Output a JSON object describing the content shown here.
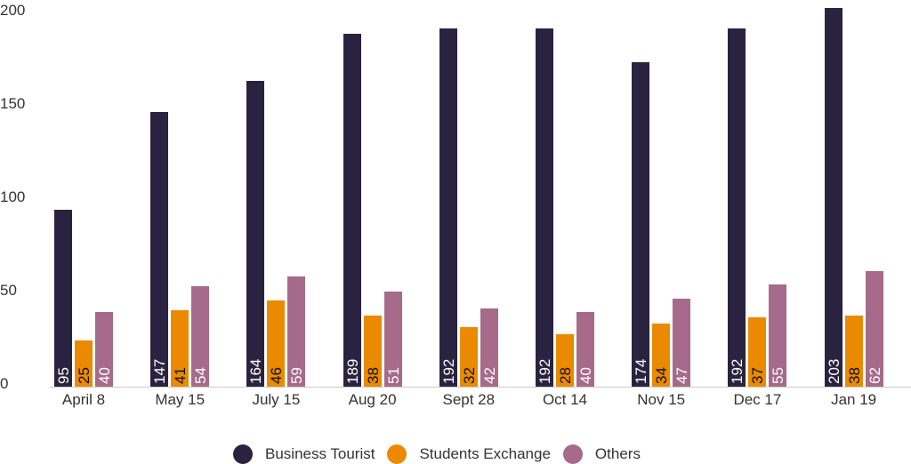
{
  "chart_data": {
    "type": "bar",
    "title": "",
    "xlabel": "",
    "ylabel": "",
    "ylim": [
      0,
      205
    ],
    "yticks": [
      0,
      50,
      100,
      150,
      200
    ],
    "grid": false,
    "legend_position": "bottom",
    "categories": [
      "April 8",
      "May 15",
      "July 15",
      "Aug 20",
      "Sept 28",
      "Oct 14",
      "Nov 15",
      "Dec 17",
      "Jan 19"
    ],
    "series": [
      {
        "name": "Business Tourist",
        "color": "#29233f",
        "label_color": "#ffffff",
        "values": [
          95,
          147,
          164,
          189,
          192,
          192,
          174,
          192,
          203
        ]
      },
      {
        "name": "Students Exchange",
        "color": "#eb8a00",
        "label_color": "#111111",
        "values": [
          25,
          41,
          46,
          38,
          32,
          28,
          34,
          37,
          38
        ]
      },
      {
        "name": "Others",
        "color": "#a66a8a",
        "label_color": "#ffffff",
        "values": [
          40,
          54,
          59,
          51,
          42,
          40,
          47,
          55,
          62
        ]
      }
    ]
  },
  "axis": {
    "yticks_labels": [
      "0",
      "50",
      "100",
      "150",
      "200"
    ]
  },
  "legend": {
    "items": [
      {
        "label": "Business Tourist",
        "color": "#29233f"
      },
      {
        "label": "Students Exchange",
        "color": "#eb8a00"
      },
      {
        "label": "Others",
        "color": "#a66a8a"
      }
    ]
  }
}
